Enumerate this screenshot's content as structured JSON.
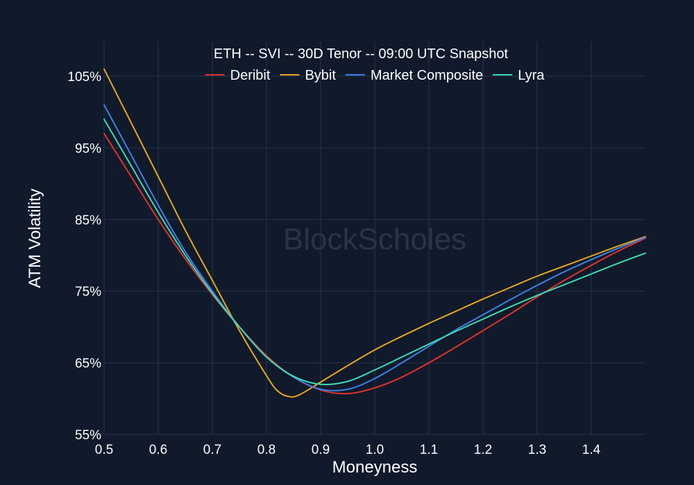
{
  "chart_data": {
    "type": "line",
    "title": "ETH -- SVI -- 30D Tenor -- 09:00 UTC Snapshot",
    "xlabel": "Moneyness",
    "ylabel": "ATM Volatility",
    "xlim": [
      0.5,
      1.5
    ],
    "ylim": [
      55,
      105
    ],
    "x_ticks": [
      0.5,
      0.6,
      0.7,
      0.8,
      0.9,
      1.0,
      1.1,
      1.2,
      1.3,
      1.4
    ],
    "x_tick_labels": [
      "0.5",
      "0.6",
      "0.7",
      "0.8",
      "0.9",
      "1.0",
      "1.1",
      "1.2",
      "1.3",
      "1.4"
    ],
    "y_ticks": [
      55,
      65,
      75,
      85,
      95,
      105
    ],
    "y_tick_labels": [
      "55%",
      "65%",
      "75%",
      "85%",
      "95%",
      "105%"
    ],
    "grid": true,
    "legend_position": "top-center",
    "watermark": "BlockScholes",
    "series": [
      {
        "name": "Deribit",
        "color": "#e0342c",
        "x": [
          0.5,
          0.55,
          0.6,
          0.65,
          0.7,
          0.75,
          0.8,
          0.85,
          0.9,
          0.95,
          1.0,
          1.05,
          1.1,
          1.15,
          1.2,
          1.25,
          1.3,
          1.35,
          1.4,
          1.45,
          1.5
        ],
        "y": [
          97,
          91,
          85,
          79.5,
          74.5,
          70,
          66,
          63,
          61.2,
          60.7,
          61.5,
          63,
          65,
          67.2,
          69.5,
          71.8,
          74.2,
          76.5,
          78.6,
          80.6,
          82.4
        ]
      },
      {
        "name": "Bybit",
        "color": "#e5a823",
        "x": [
          0.5,
          0.55,
          0.6,
          0.65,
          0.7,
          0.75,
          0.8,
          0.82,
          0.84,
          0.86,
          0.9,
          0.95,
          1.0,
          1.05,
          1.1,
          1.15,
          1.2,
          1.25,
          1.3,
          1.35,
          1.4,
          1.45,
          1.5
        ],
        "y": [
          106,
          98.5,
          91,
          83.5,
          76.5,
          69.5,
          63.2,
          61.1,
          60.3,
          60.5,
          62.3,
          64.6,
          66.8,
          68.7,
          70.5,
          72.2,
          73.9,
          75.5,
          77.1,
          78.5,
          79.9,
          81.3,
          82.6
        ]
      },
      {
        "name": "Market Composite",
        "color": "#3b82e8",
        "x": [
          0.5,
          0.55,
          0.6,
          0.65,
          0.7,
          0.75,
          0.8,
          0.85,
          0.9,
          0.95,
          1.0,
          1.05,
          1.1,
          1.15,
          1.2,
          1.25,
          1.3,
          1.35,
          1.4,
          1.45,
          1.5
        ],
        "y": [
          101,
          94,
          87,
          80.5,
          75,
          70,
          65.8,
          63,
          61.3,
          61.3,
          62.8,
          65,
          67.3,
          69.6,
          71.7,
          73.8,
          75.8,
          77.7,
          79.4,
          81,
          82.5
        ]
      },
      {
        "name": "Lyra",
        "color": "#3ddbb3",
        "x": [
          0.5,
          0.55,
          0.6,
          0.65,
          0.7,
          0.75,
          0.8,
          0.85,
          0.9,
          0.95,
          1.0,
          1.05,
          1.1,
          1.15,
          1.2,
          1.25,
          1.3,
          1.35,
          1.4,
          1.45,
          1.5
        ],
        "y": [
          99,
          92.5,
          86,
          80,
          74.7,
          70,
          65.8,
          63.1,
          62,
          62.4,
          64,
          65.8,
          67.6,
          69.4,
          71.1,
          72.8,
          74.4,
          75.9,
          77.4,
          78.9,
          80.3
        ]
      }
    ]
  }
}
